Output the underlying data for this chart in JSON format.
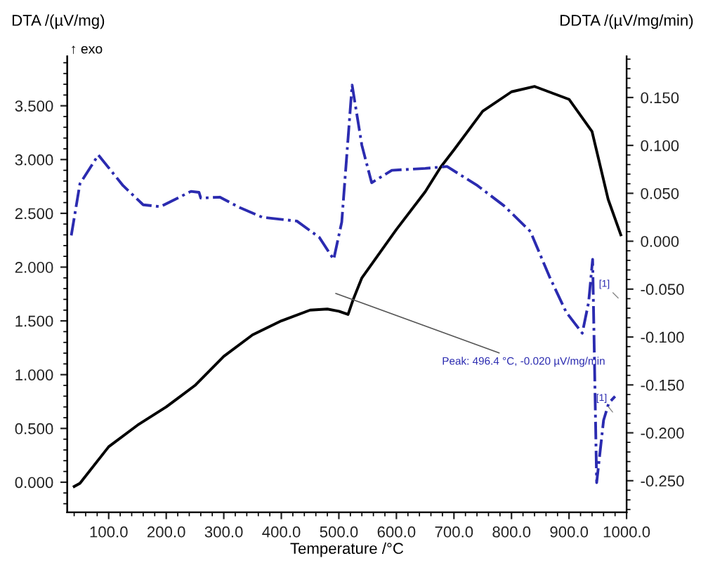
{
  "chart_data": {
    "type": "line",
    "xlabel": "Temperature /°C",
    "ylabel": "DTA /(µV/mg)",
    "y2label": "DDTA /(µV/mg/min)",
    "xlim": [
      28,
      1000
    ],
    "xticks": [
      {
        "value": 100,
        "label": "100.0"
      },
      {
        "value": 200,
        "label": "200.0"
      },
      {
        "value": 300,
        "label": "300.0"
      },
      {
        "value": 400,
        "label": "400.0"
      },
      {
        "value": 500,
        "label": "500.0"
      },
      {
        "value": 600,
        "label": "600.0"
      },
      {
        "value": 700,
        "label": "700.0"
      },
      {
        "value": 800,
        "label": "800.0"
      },
      {
        "value": 900,
        "label": "900.0"
      },
      {
        "value": 1000,
        "label": "1000.0"
      }
    ],
    "ylim": [
      -0.28,
      3.96
    ],
    "yticks": [
      {
        "value": 0,
        "label": "0.000"
      },
      {
        "value": 0.5,
        "label": "0.500"
      },
      {
        "value": 1,
        "label": "1.000"
      },
      {
        "value": 1.5,
        "label": "1.500"
      },
      {
        "value": 2,
        "label": "2.000"
      },
      {
        "value": 2.5,
        "label": "2.500"
      },
      {
        "value": 3,
        "label": "3.000"
      },
      {
        "value": 3.5,
        "label": "3.500"
      }
    ],
    "y2lim": [
      -0.283,
      0.193
    ],
    "y2ticks": [
      {
        "value": -0.25,
        "label": "-0.250"
      },
      {
        "value": -0.2,
        "label": "-0.200"
      },
      {
        "value": -0.15,
        "label": "-0.150"
      },
      {
        "value": -0.1,
        "label": "-0.100"
      },
      {
        "value": -0.05,
        "label": "-0.050"
      },
      {
        "value": 0,
        "label": "0.000"
      },
      {
        "value": 0.05,
        "label": "0.050"
      },
      {
        "value": 0.1,
        "label": "0.100"
      },
      {
        "value": 0.15,
        "label": "0.150"
      }
    ],
    "grid": false,
    "legend": false,
    "series": [
      {
        "color": "#000000",
        "line_style": "solid",
        "x": [
          40,
          50,
          100,
          150,
          200,
          250,
          300,
          350,
          400,
          450,
          480,
          500,
          516,
          525,
          540,
          560,
          600,
          650,
          677,
          700,
          750,
          800,
          840,
          900,
          940,
          948,
          968,
          990
        ],
        "values": [
          -0.04,
          -0.01,
          0.33,
          0.53,
          0.7,
          0.9,
          1.17,
          1.37,
          1.5,
          1.6,
          1.61,
          1.59,
          1.56,
          1.7,
          1.9,
          2.05,
          2.35,
          2.7,
          2.93,
          3.09,
          3.45,
          3.63,
          3.68,
          3.56,
          3.26,
          3.08,
          2.63,
          2.3
        ]
      },
      {
        "color": "#2b2bb0",
        "line_style": "dashdot",
        "axis": "y2",
        "x": [
          35,
          50,
          82,
          125,
          160,
          190,
          243,
          257,
          260,
          293,
          328,
          367,
          427,
          466,
          491,
          505,
          523,
          540,
          557,
          592,
          650,
          688,
          741,
          787,
          833,
          866,
          895,
          923,
          934,
          941,
          948,
          960,
          969,
          980
        ],
        "values": [
          0.006,
          0.06,
          0.09,
          0.058,
          0.038,
          0.036,
          0.052,
          0.051,
          0.045,
          0.046,
          0.035,
          0.025,
          0.021,
          0.004,
          -0.019,
          0.02,
          0.163,
          0.1,
          0.061,
          0.074,
          0.076,
          0.078,
          0.058,
          0.037,
          0.01,
          -0.037,
          -0.074,
          -0.096,
          -0.064,
          -0.019,
          -0.252,
          -0.187,
          -0.169,
          -0.162
        ]
      }
    ],
    "annotations": [
      "↑ exo",
      "Peak: 496.4 °C, -0.020 µV/mg/min",
      "[1]",
      "[1]"
    ]
  }
}
